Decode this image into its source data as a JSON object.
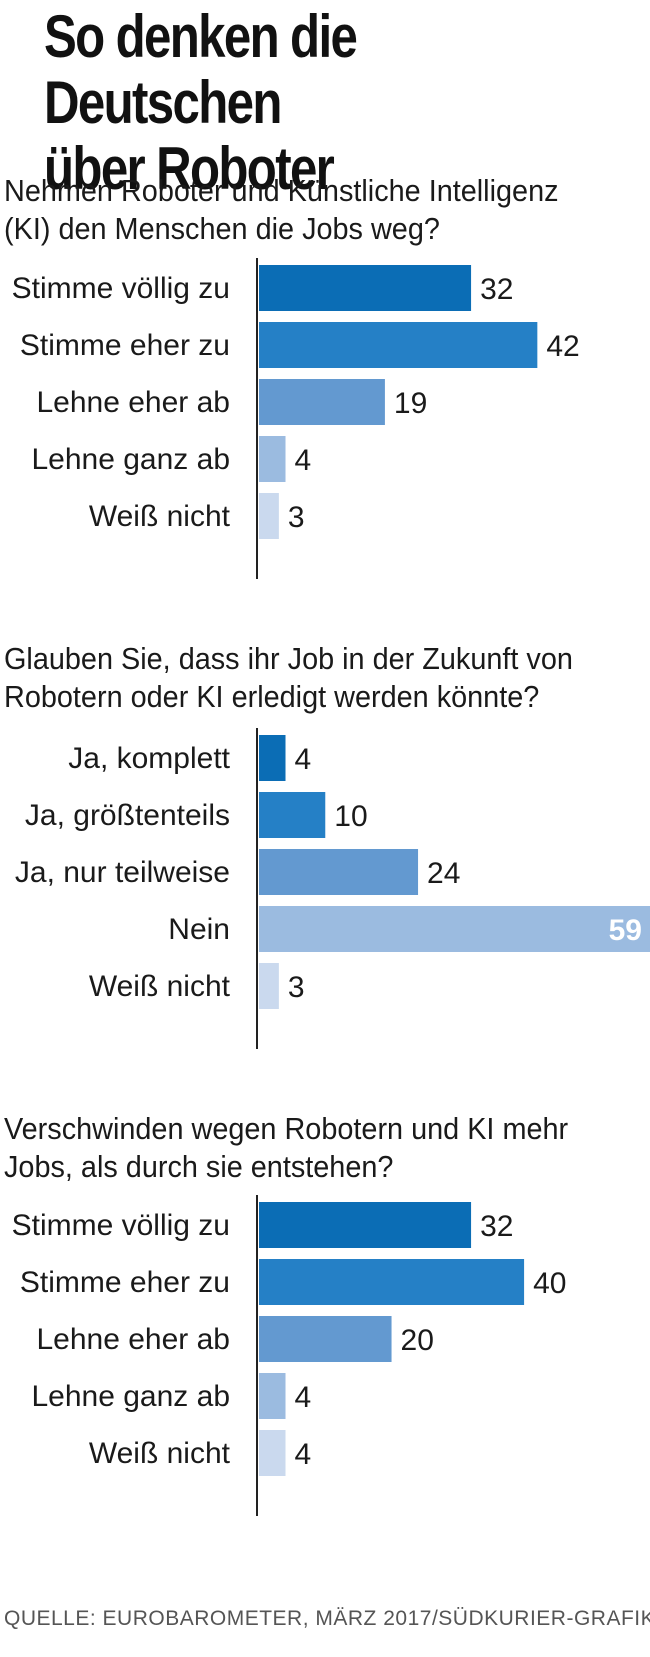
{
  "title": {
    "line1": "So denken die Deutschen",
    "line2": "über Roboter"
  },
  "footer": "QUELLE: EUROBAROMETER, MÄRZ 2017/SÜDKURIER-GRAFIK",
  "colors": [
    "#0b6db5",
    "#2580c6",
    "#6399d0",
    "#9bbbe0",
    "#cad9ee"
  ],
  "chart_data": [
    {
      "type": "bar",
      "orientation": "horizontal",
      "title": "Nehmen Roboter und Künstliche Intelligenz (KI) den Menschen die Jobs weg?",
      "title_lines": [
        "Nehmen Roboter und Künstliche Intelligenz",
        "(KI) den Menschen die Jobs weg?"
      ],
      "categories": [
        "Stimme völlig zu",
        "Stimme eher zu",
        "Lehne eher ab",
        "Lehne ganz ab",
        "Weiß nicht"
      ],
      "values": [
        32,
        42,
        19,
        4,
        3
      ],
      "xlim": [
        0,
        59
      ]
    },
    {
      "type": "bar",
      "orientation": "horizontal",
      "title": "Glauben Sie, dass ihr Job in der Zukunft von Robotern oder KI erledigt werden könnte?",
      "title_lines": [
        "Glauben Sie, dass ihr Job in der Zukunft von",
        "Robotern oder KI erledigt werden könnte?"
      ],
      "categories": [
        "Ja, komplett",
        "Ja, größtenteils",
        "Ja, nur teilweise",
        "Nein",
        "Weiß nicht"
      ],
      "values": [
        4,
        10,
        24,
        59,
        3
      ],
      "xlim": [
        0,
        59
      ]
    },
    {
      "type": "bar",
      "orientation": "horizontal",
      "title": "Verschwinden wegen Robotern und KI mehr Jobs, als durch sie entstehen?",
      "title_lines": [
        "Verschwinden wegen Robotern und KI mehr",
        "Jobs, als durch sie entstehen?"
      ],
      "categories": [
        "Stimme völlig zu",
        "Stimme eher zu",
        "Lehne eher ab",
        "Lehne ganz ab",
        "Weiß nicht"
      ],
      "values": [
        32,
        40,
        20,
        4,
        4
      ],
      "xlim": [
        0,
        59
      ]
    }
  ]
}
